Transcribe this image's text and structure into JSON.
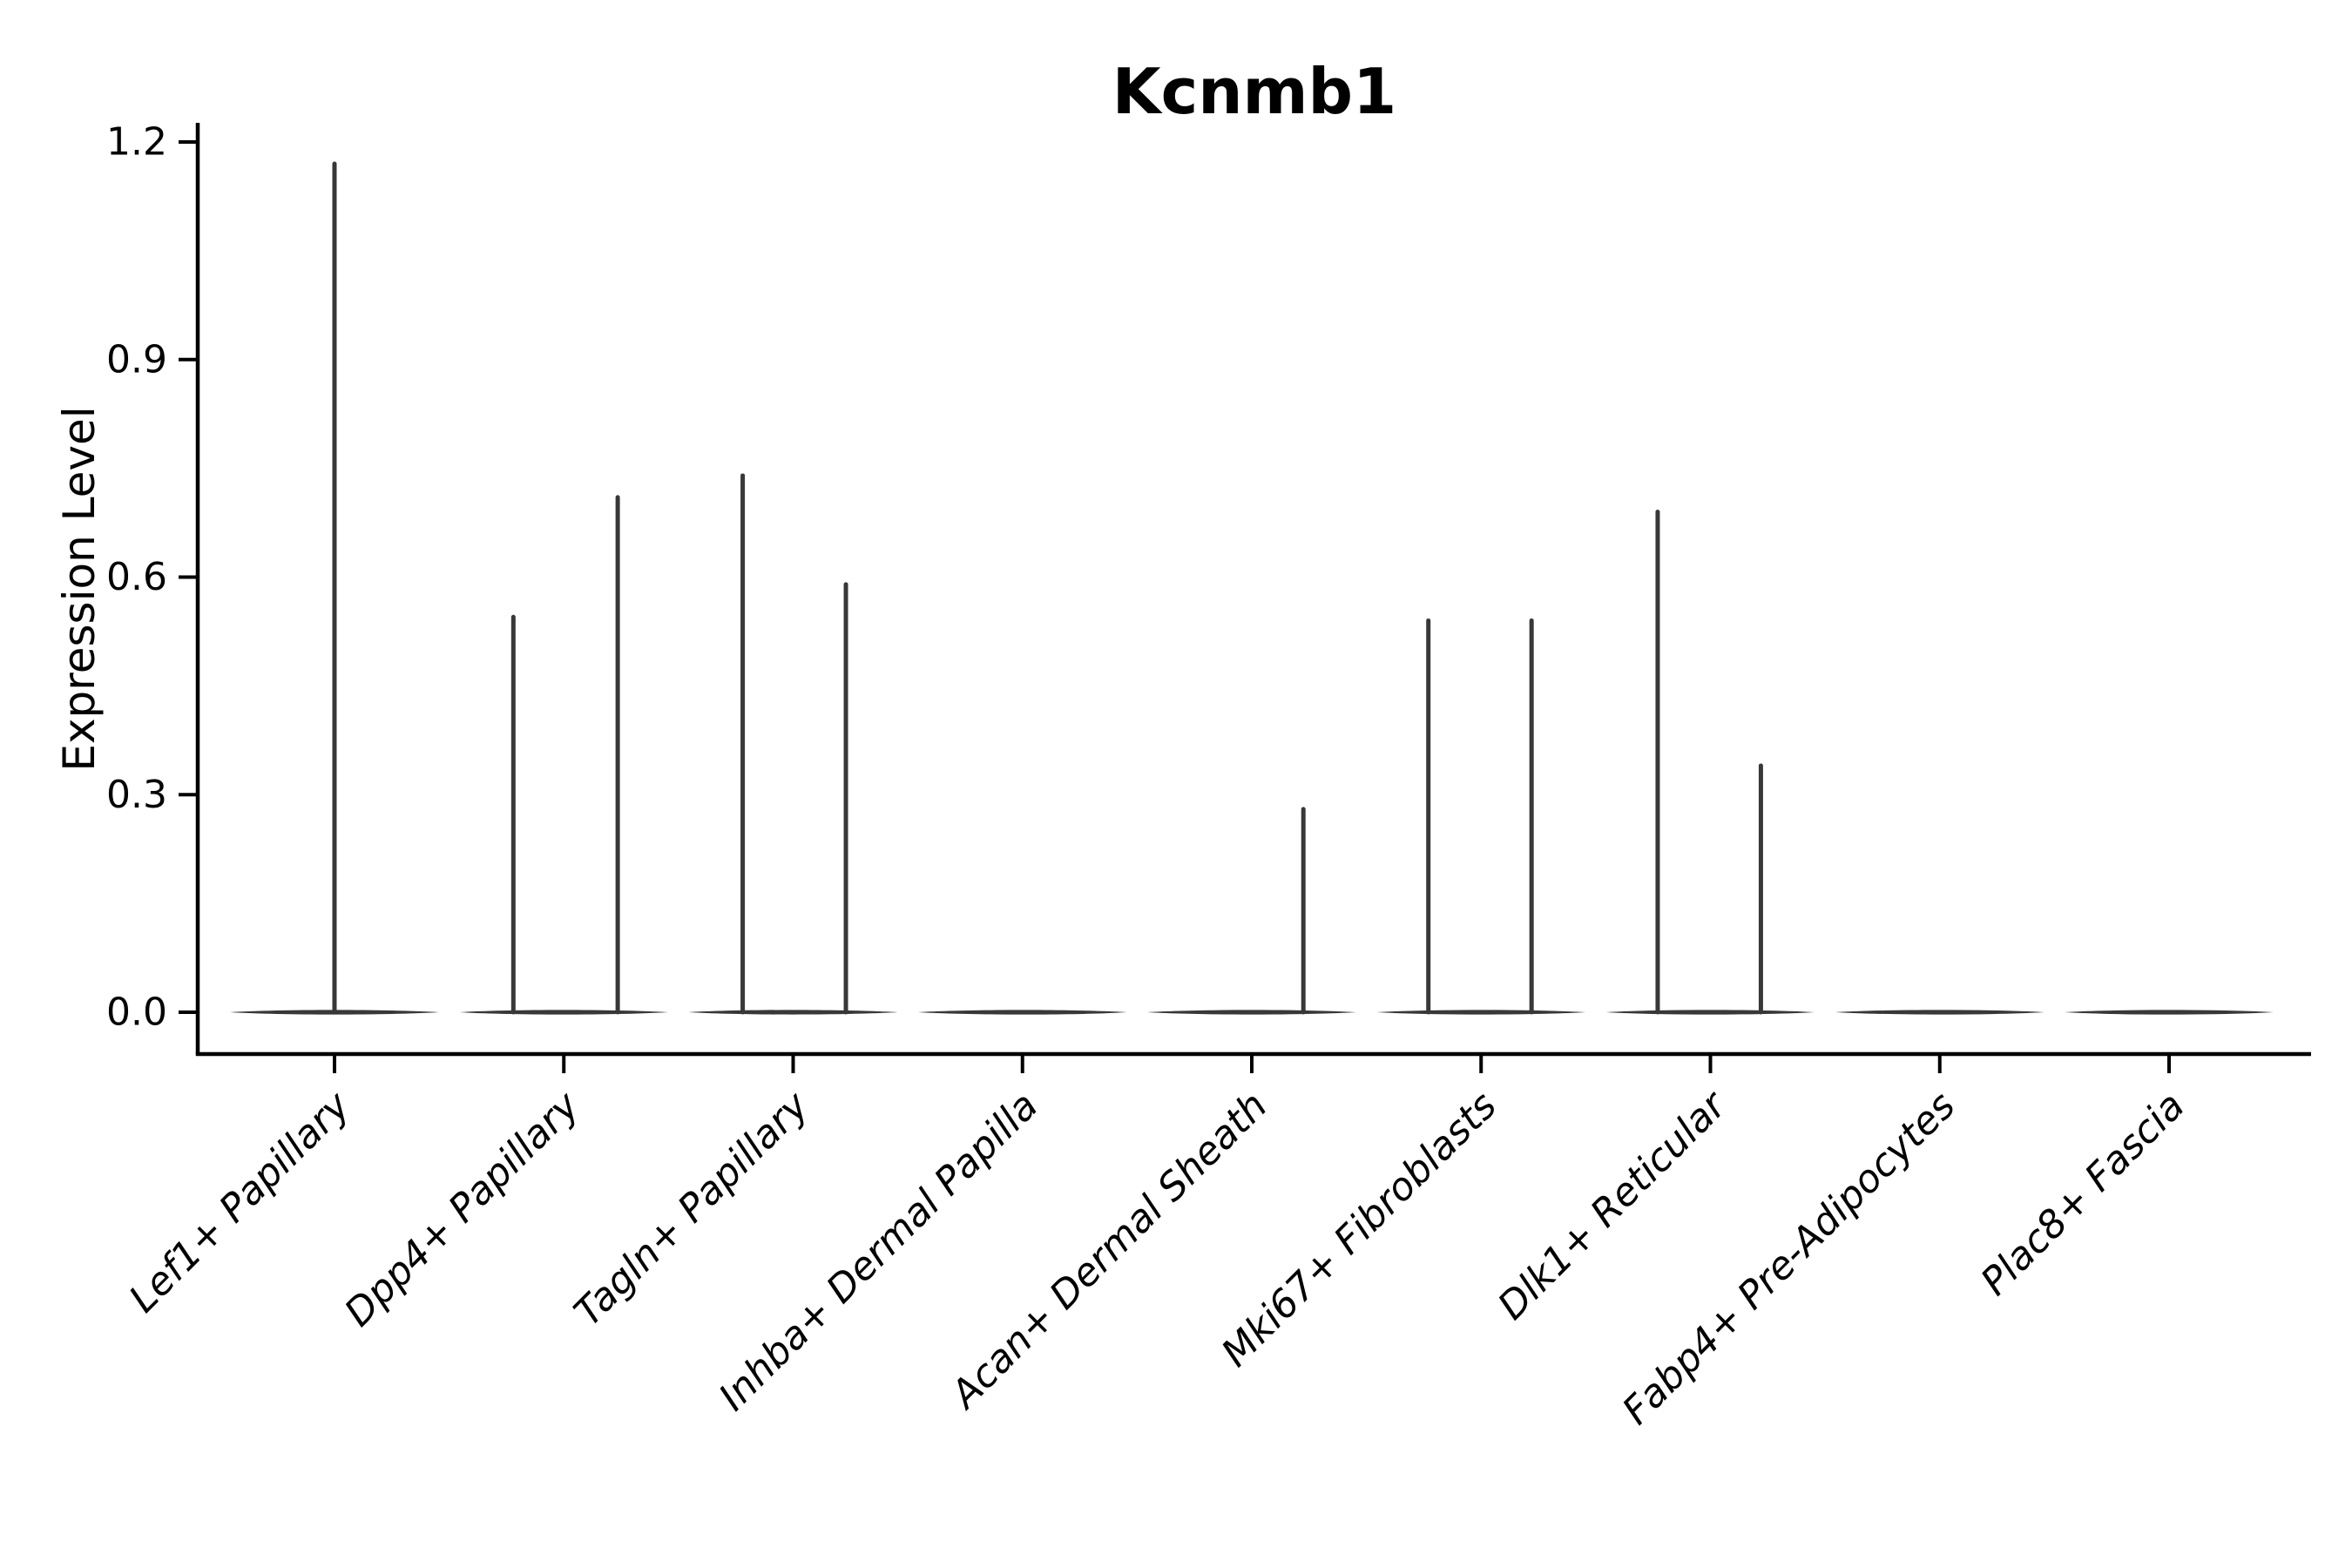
{
  "title": "Kcnmb1",
  "ylabel": "Expression Level",
  "chart_data": {
    "type": "violin",
    "title": "Kcnmb1",
    "xlabel": "",
    "ylabel": "Expression Level",
    "ylim": [
      0,
      1.2
    ],
    "grid": false,
    "legend": "none",
    "ytick_labels": [
      "0.0",
      "0.3",
      "0.6",
      "0.9",
      "1.2"
    ],
    "ytick_values": [
      0.0,
      0.3,
      0.6,
      0.9,
      1.2
    ],
    "categories": [
      "Lef1+ Papillary",
      "Dpp4+ Papillary",
      "Tagln+ Papillary",
      "Inhba+ Dermal Papilla",
      "Acan+ Dermal Sheath",
      "Mki67+ Fibroblasts",
      "Dlk1+ Reticular",
      "Fabp4+ Pre-Adipocytes",
      "Plac8+ Fascia"
    ],
    "violins": [
      {
        "category": "Lef1+ Papillary",
        "baseline": 0.0,
        "spikes": [
          {
            "offset": 0.0,
            "max": 1.17
          }
        ]
      },
      {
        "category": "Dpp4+ Papillary",
        "baseline": 0.0,
        "spikes": [
          {
            "offset": -0.22,
            "max": 0.545
          },
          {
            "offset": 0.235,
            "max": 0.71
          }
        ]
      },
      {
        "category": "Tagln+ Papillary",
        "baseline": 0.0,
        "spikes": [
          {
            "offset": -0.22,
            "max": 0.74
          },
          {
            "offset": 0.23,
            "max": 0.59
          }
        ]
      },
      {
        "category": "Inhba+ Dermal Papilla",
        "baseline": 0.0,
        "spikes": []
      },
      {
        "category": "Acan+ Dermal Sheath",
        "baseline": 0.0,
        "spikes": [
          {
            "offset": 0.225,
            "max": 0.28
          }
        ]
      },
      {
        "category": "Mki67+ Fibroblasts",
        "baseline": 0.0,
        "spikes": [
          {
            "offset": -0.23,
            "max": 0.54
          },
          {
            "offset": 0.22,
            "max": 0.54
          }
        ]
      },
      {
        "category": "Dlk1+ Reticular",
        "baseline": 0.0,
        "spikes": [
          {
            "offset": -0.23,
            "max": 0.69
          },
          {
            "offset": 0.22,
            "max": 0.34
          }
        ]
      },
      {
        "category": "Fabp4+ Pre-Adipocytes",
        "baseline": 0.0,
        "spikes": []
      },
      {
        "category": "Plac8+ Fascia",
        "baseline": 0.0,
        "spikes": []
      }
    ],
    "colors": {
      "violin_stroke": "#383838",
      "axis": "#000000",
      "text": "#000000",
      "background": "#ffffff"
    }
  }
}
